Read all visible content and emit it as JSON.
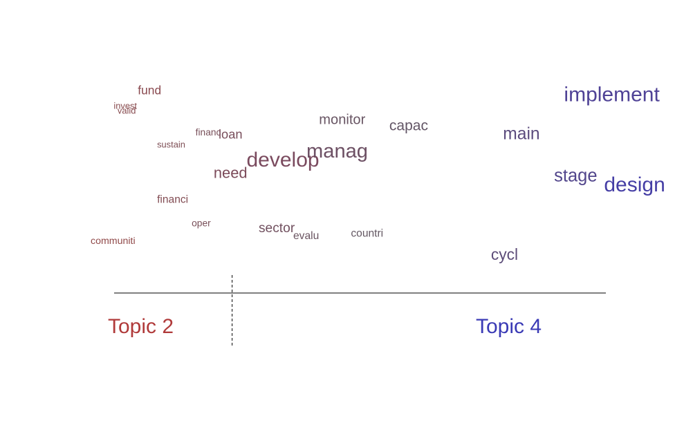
{
  "chart_data": {
    "type": "scatter",
    "title": "",
    "xlabel": "",
    "ylabel": "",
    "xlim": [
      0,
      1
    ],
    "ylim": [
      0,
      1
    ],
    "colors": {
      "topic_a": "#b03a3a",
      "topic_b": "#3a3ab5",
      "axis": "#000000"
    },
    "axis_labels": {
      "left": "Topic 2",
      "right": "Topic 4"
    },
    "divider_x": 0.24,
    "words": [
      {
        "word": "fund",
        "x": 0.086,
        "y": 0.902,
        "size": 0.3
      },
      {
        "word": "invest",
        "x": 0.042,
        "y": 0.829,
        "size": 0.05
      },
      {
        "word": "valid",
        "x": 0.049,
        "y": 0.806,
        "size": 0.05
      },
      {
        "word": "financ",
        "x": 0.191,
        "y": 0.696,
        "size": 0.1
      },
      {
        "word": "loan",
        "x": 0.233,
        "y": 0.681,
        "size": 0.35
      },
      {
        "word": "sustain",
        "x": 0.121,
        "y": 0.637,
        "size": 0.05
      },
      {
        "word": "develop",
        "x": 0.284,
        "y": 0.542,
        "size": 1.0
      },
      {
        "word": "need",
        "x": 0.224,
        "y": 0.485,
        "size": 0.55
      },
      {
        "word": "financi",
        "x": 0.121,
        "y": 0.36,
        "size": 0.2
      },
      {
        "word": "oper",
        "x": 0.184,
        "y": 0.243,
        "size": 0.1
      },
      {
        "word": "communiti",
        "x": 0.0,
        "y": 0.155,
        "size": 0.12
      },
      {
        "word": "sector",
        "x": 0.306,
        "y": 0.213,
        "size": 0.4
      },
      {
        "word": "evalu",
        "x": 0.369,
        "y": 0.18,
        "size": 0.2
      },
      {
        "word": "countri",
        "x": 0.474,
        "y": 0.191,
        "size": 0.2
      },
      {
        "word": "monitor",
        "x": 0.416,
        "y": 0.754,
        "size": 0.45
      },
      {
        "word": "capac",
        "x": 0.544,
        "y": 0.722,
        "size": 0.5
      },
      {
        "word": "manag",
        "x": 0.393,
        "y": 0.586,
        "size": 0.95
      },
      {
        "word": "main",
        "x": 0.751,
        "y": 0.677,
        "size": 0.7
      },
      {
        "word": "implement",
        "x": 0.862,
        "y": 0.868,
        "size": 1.0
      },
      {
        "word": "stage",
        "x": 0.844,
        "y": 0.467,
        "size": 0.75
      },
      {
        "word": "design",
        "x": 0.935,
        "y": 0.418,
        "size": 1.0
      },
      {
        "word": "cycl",
        "x": 0.729,
        "y": 0.076,
        "size": 0.6
      }
    ]
  }
}
